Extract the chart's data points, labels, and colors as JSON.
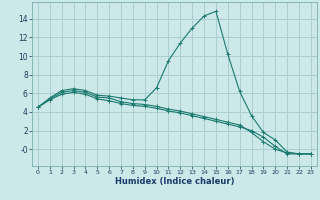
{
  "title": "",
  "xlabel": "Humidex (Indice chaleur)",
  "ylabel": "",
  "bg_color": "#cce8e8",
  "grid_color": "#aacfcf",
  "line_color": "#1a7a70",
  "xlim": [
    -0.5,
    23.5
  ],
  "ylim": [
    -1.8,
    15.8
  ],
  "xticks": [
    0,
    1,
    2,
    3,
    4,
    5,
    6,
    7,
    8,
    9,
    10,
    11,
    12,
    13,
    14,
    15,
    16,
    17,
    18,
    19,
    20,
    21,
    22,
    23
  ],
  "yticks": [
    0,
    2,
    4,
    6,
    8,
    10,
    12,
    14
  ],
  "ytick_labels": [
    "-0",
    "2",
    "4",
    "6",
    "8",
    "10",
    "12",
    "14"
  ],
  "curve1_x": [
    0,
    1,
    2,
    3,
    4,
    5,
    6,
    7,
    8,
    9,
    10,
    11,
    12,
    13,
    14,
    15,
    16,
    17,
    18,
    19,
    20,
    21,
    22,
    23
  ],
  "curve1_y": [
    4.5,
    5.5,
    6.3,
    6.5,
    6.3,
    5.8,
    5.7,
    5.5,
    5.3,
    5.3,
    6.6,
    9.5,
    11.4,
    13.0,
    14.3,
    14.8,
    10.2,
    6.2,
    3.6,
    1.8,
    1.0,
    -0.3,
    -0.5,
    -0.5
  ],
  "curve2_x": [
    0,
    1,
    2,
    3,
    4,
    5,
    6,
    7,
    8,
    9,
    10,
    11,
    12,
    13,
    14,
    15,
    16,
    17,
    18,
    19,
    20,
    21,
    22,
    23
  ],
  "curve2_y": [
    4.5,
    5.3,
    5.9,
    6.1,
    5.9,
    5.4,
    5.2,
    4.9,
    4.7,
    4.6,
    4.4,
    4.1,
    3.9,
    3.6,
    3.3,
    3.0,
    2.7,
    2.4,
    2.0,
    1.3,
    0.3,
    -0.5,
    -0.5,
    -0.5
  ],
  "curve3_x": [
    0,
    1,
    2,
    3,
    4,
    5,
    6,
    7,
    8,
    9,
    10,
    11,
    12,
    13,
    14,
    15,
    16,
    17,
    18,
    19,
    20,
    21,
    22,
    23
  ],
  "curve3_y": [
    4.5,
    5.4,
    6.1,
    6.3,
    6.1,
    5.6,
    5.5,
    5.1,
    4.9,
    4.8,
    4.6,
    4.3,
    4.1,
    3.8,
    3.5,
    3.2,
    2.9,
    2.6,
    1.8,
    0.8,
    0.0,
    -0.4,
    -0.5,
    -0.5
  ]
}
